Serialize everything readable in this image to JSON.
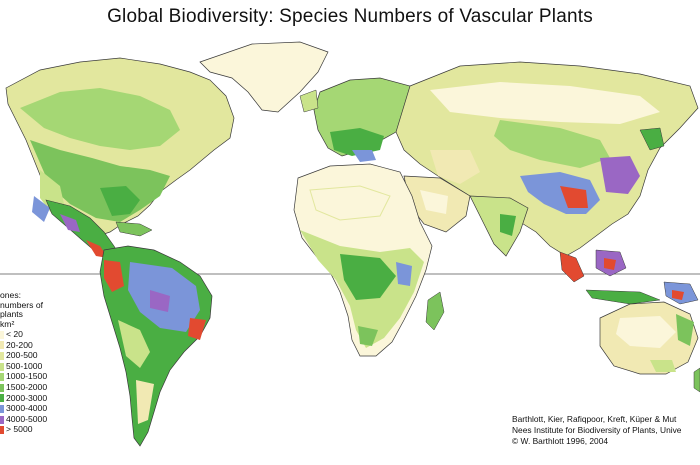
{
  "title": "Global Biodiversity: Species Numbers of Vascular Plants",
  "legend": {
    "heading_lines": [
      "ones:",
      "numbers of",
      "plants",
      "km²"
    ],
    "classes": [
      {
        "label": "< 20",
        "color": "#fbf6da"
      },
      {
        "label": "20-200",
        "color": "#f1e9b3"
      },
      {
        "label": "200-500",
        "color": "#e2e79e"
      },
      {
        "label": "500-1000",
        "color": "#c9e38a"
      },
      {
        "label": "1000-1500",
        "color": "#a5d774"
      },
      {
        "label": "1500-2000",
        "color": "#7cc35c"
      },
      {
        "label": "2000-3000",
        "color": "#4aae43"
      },
      {
        "label": "3000-4000",
        "color": "#7b95d9"
      },
      {
        "label": "4000-5000",
        "color": "#9a67c4"
      },
      {
        "label": "> 5000",
        "color": "#e24a30"
      }
    ]
  },
  "credits": [
    "Barthlott, Kier, Rafiqpoor, Kreft,  Küper & Mut",
    "Nees Institute for Biodiversity of Plants, Unive",
    "© W. Barthlott 1996, 2004"
  ],
  "colors": {
    "ocean": "#ffffff",
    "equator_line": "#555555",
    "coastline": "#3a3a3a"
  }
}
